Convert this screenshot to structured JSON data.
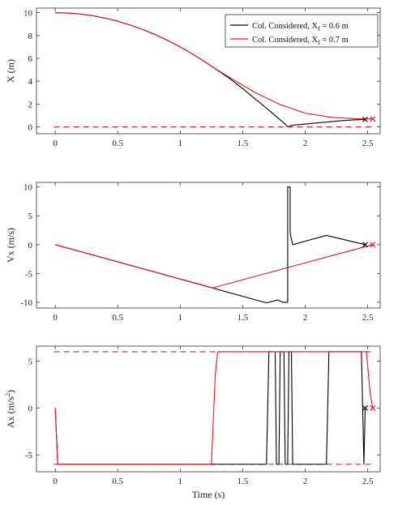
{
  "colors": {
    "black": "#000000",
    "red": "#e41a1c",
    "axis": "#333333"
  },
  "legend": {
    "entries": [
      {
        "series": "black",
        "text": "Col. Considered, X",
        "sub": "f",
        "tail": " = 0.6 m"
      },
      {
        "series": "red",
        "text": "Col. Considered, X",
        "sub": "f",
        "tail": " = 0.7 m"
      }
    ]
  },
  "chart_data": [
    {
      "type": "line",
      "ylabel": "X (m)",
      "xlabel": "",
      "xlim": [
        -0.15,
        2.6
      ],
      "ylim": [
        -0.6,
        10.4
      ],
      "xticks": [
        0,
        0.5,
        1,
        1.5,
        2,
        2.5
      ],
      "xtick_labels": [
        "0",
        "0.5",
        "1",
        "1.5",
        "2",
        "2.5"
      ],
      "yticks": [
        0,
        2,
        4,
        6,
        8,
        10
      ],
      "ytick_labels": [
        "0",
        "2",
        "4",
        "6",
        "8",
        "10"
      ],
      "legend_position": "top-right",
      "series": [
        {
          "color": "black",
          "dashed": false,
          "x": [
            0,
            0.1,
            0.2,
            0.3,
            0.4,
            0.5,
            0.6,
            0.7,
            0.8,
            0.9,
            1.0,
            1.1,
            1.2,
            1.25,
            1.3,
            1.4,
            1.5,
            1.6,
            1.7,
            1.8,
            1.84,
            1.86,
            1.9,
            2.0,
            2.1,
            2.2,
            2.3,
            2.4,
            2.48
          ],
          "y": [
            10,
            9.97,
            9.88,
            9.73,
            9.52,
            9.25,
            8.92,
            8.53,
            8.08,
            7.57,
            7.0,
            6.37,
            5.68,
            5.31,
            4.95,
            4.2,
            3.35,
            2.45,
            1.55,
            0.62,
            0.25,
            0.0,
            0.15,
            0.25,
            0.35,
            0.45,
            0.55,
            0.62,
            0.65
          ],
          "end_marker": {
            "x": 2.48,
            "y": 0.65
          }
        },
        {
          "color": "red",
          "dashed": false,
          "x": [
            0,
            0.1,
            0.2,
            0.3,
            0.4,
            0.5,
            0.6,
            0.7,
            0.8,
            0.9,
            1.0,
            1.1,
            1.2,
            1.25,
            1.4,
            1.6,
            1.8,
            2.0,
            2.2,
            2.4,
            2.54
          ],
          "y": [
            10,
            9.97,
            9.88,
            9.73,
            9.52,
            9.25,
            8.92,
            8.53,
            8.08,
            7.57,
            7.0,
            6.37,
            5.68,
            5.31,
            4.3,
            3.0,
            1.95,
            1.2,
            0.85,
            0.72,
            0.7
          ],
          "end_marker": {
            "x": 2.54,
            "y": 0.7
          }
        },
        {
          "color": "red",
          "dashed": true,
          "x": [
            -0.01,
            2.55
          ],
          "y": [
            0.0,
            0.0
          ]
        }
      ]
    },
    {
      "type": "line",
      "ylabel": "Vx (m/s)",
      "xlabel": "",
      "xlim": [
        -0.15,
        2.6
      ],
      "ylim": [
        -11,
        10.8
      ],
      "xticks": [
        0,
        0.5,
        1,
        1.5,
        2,
        2.5
      ],
      "xtick_labels": [
        "0",
        "0.5",
        "1",
        "1.5",
        "2",
        "2.5"
      ],
      "yticks": [
        -10,
        -5,
        0,
        5,
        10
      ],
      "ytick_labels": [
        "-10",
        "-5",
        "0",
        "5",
        "10"
      ],
      "series": [
        {
          "color": "black",
          "dashed": false,
          "x": [
            0,
            1.69,
            1.78,
            1.82,
            1.86,
            1.86,
            1.88,
            1.88,
            1.9,
            2.17,
            2.48
          ],
          "y": [
            0,
            -10.1,
            -9.6,
            -10.0,
            -10.0,
            10.0,
            10.0,
            2.0,
            0.0,
            1.6,
            0.0
          ],
          "end_marker": {
            "x": 2.48,
            "y": 0.0
          }
        },
        {
          "color": "red",
          "dashed": false,
          "x": [
            0,
            1.26,
            2.54
          ],
          "y": [
            0,
            -7.5,
            0.0
          ],
          "end_marker": {
            "x": 2.54,
            "y": 0.0
          }
        }
      ]
    },
    {
      "type": "line",
      "ylabel": "Ax (m/s²)",
      "ylabel_main": "Ax (m/s",
      "ylabel_sup": "2",
      "ylabel_tail": ")",
      "xlabel": "Time (s)",
      "xlim": [
        -0.15,
        2.6
      ],
      "ylim": [
        -6.8,
        6.6
      ],
      "xticks": [
        0,
        0.5,
        1,
        1.5,
        2,
        2.5
      ],
      "xtick_labels": [
        "0",
        "0.5",
        "1",
        "1.5",
        "2",
        "2.5"
      ],
      "yticks": [
        -5,
        0,
        5
      ],
      "ytick_labels": [
        "-5",
        "0",
        "5"
      ],
      "series": [
        {
          "color": "red",
          "dashed": true,
          "x": [
            -0.01,
            2.55
          ],
          "y": [
            6.0,
            6.0
          ]
        },
        {
          "color": "red",
          "dashed": true,
          "x": [
            -0.01,
            2.55
          ],
          "y": [
            -6.0,
            -6.0
          ]
        },
        {
          "color": "black",
          "dashed": false,
          "x": [
            0,
            0.02,
            1.69,
            1.71,
            1.76,
            1.77,
            1.79,
            1.8,
            1.83,
            1.84,
            1.86,
            1.87,
            1.89,
            1.9,
            2.17,
            2.19,
            2.45,
            2.47,
            2.48
          ],
          "y": [
            0,
            -6,
            -6,
            6,
            6,
            -6,
            -6,
            6,
            6,
            -6,
            -6,
            6,
            6,
            -6,
            -6,
            6,
            6,
            -6,
            0
          ],
          "end_marker": {
            "x": 2.48,
            "y": 0
          }
        },
        {
          "color": "red",
          "dashed": false,
          "x": [
            0,
            0.02,
            1.25,
            1.28,
            1.3,
            2.49,
            2.52,
            2.54
          ],
          "y": [
            0,
            -6,
            -6,
            3.5,
            6,
            6,
            1.5,
            0
          ],
          "end_marker": {
            "x": 2.54,
            "y": 0
          }
        }
      ]
    }
  ]
}
